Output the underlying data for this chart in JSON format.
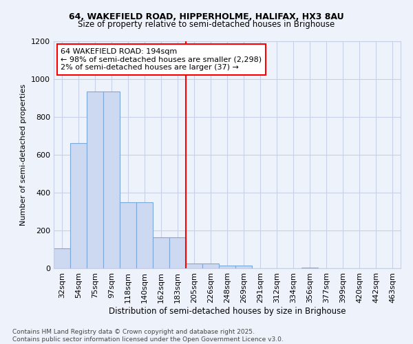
{
  "title1": "64, WAKEFIELD ROAD, HIPPERHOLME, HALIFAX, HX3 8AU",
  "title2": "Size of property relative to semi-detached houses in Brighouse",
  "xlabel": "Distribution of semi-detached houses by size in Brighouse",
  "ylabel": "Number of semi-detached properties",
  "categories": [
    "32sqm",
    "54sqm",
    "75sqm",
    "97sqm",
    "118sqm",
    "140sqm",
    "162sqm",
    "183sqm",
    "205sqm",
    "226sqm",
    "248sqm",
    "269sqm",
    "291sqm",
    "312sqm",
    "334sqm",
    "356sqm",
    "377sqm",
    "399sqm",
    "420sqm",
    "442sqm",
    "463sqm"
  ],
  "values": [
    105,
    660,
    935,
    935,
    350,
    350,
    165,
    165,
    25,
    25,
    15,
    15,
    0,
    0,
    0,
    5,
    0,
    0,
    0,
    0,
    0
  ],
  "bar_color": "#ccd9f0",
  "bar_edge_color": "#7aa8d8",
  "vline_color": "red",
  "annotation_title": "64 WAKEFIELD ROAD: 194sqm",
  "annotation_line1": "← 98% of semi-detached houses are smaller (2,298)",
  "annotation_line2": "2% of semi-detached houses are larger (37) →",
  "ylim": [
    0,
    1200
  ],
  "yticks": [
    0,
    200,
    400,
    600,
    800,
    1000,
    1200
  ],
  "footer": "Contains HM Land Registry data © Crown copyright and database right 2025.\nContains public sector information licensed under the Open Government Licence v3.0.",
  "bg_color": "#eef2fb",
  "grid_color": "#c8d0e8"
}
